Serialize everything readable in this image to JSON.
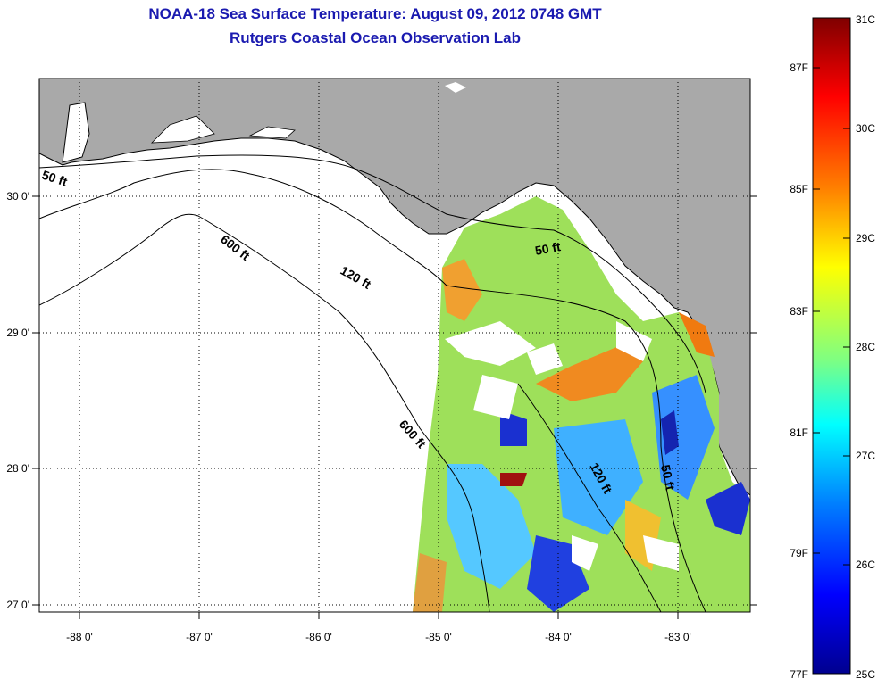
{
  "title": {
    "line1": "NOAA-18 Sea Surface Temperature:  August 09, 2012 0748 GMT",
    "line2": "Rutgers Coastal Ocean Observation Lab"
  },
  "map": {
    "lon_ticks": [
      "-88 0'",
      "-87 0'",
      "-86 0'",
      "-85 0'",
      "-84 0'",
      "-83 0'"
    ],
    "lat_ticks": [
      "30 0'",
      "29 0'",
      "28 0'",
      "27 0'"
    ],
    "contour_labels": [
      "50 ft",
      "600 ft",
      "120 ft",
      "50 ft",
      "600 ft",
      "120 ft",
      "50 ft"
    ],
    "colors": {
      "land": "#a9a9a9",
      "water": "#ffffff",
      "coast": "#000000"
    }
  },
  "colorbar": {
    "fahrenheit": [
      "87F",
      "85F",
      "83F",
      "81F",
      "79F",
      "77F"
    ],
    "celsius": [
      "31C",
      "30C",
      "29C",
      "28C",
      "27C",
      "26C",
      "25C"
    ],
    "gradient": [
      "#7f0000",
      "#ff0000",
      "#ff8000",
      "#ffff00",
      "#80ff80",
      "#00ffff",
      "#0080ff",
      "#0000ff",
      "#00008f"
    ]
  }
}
